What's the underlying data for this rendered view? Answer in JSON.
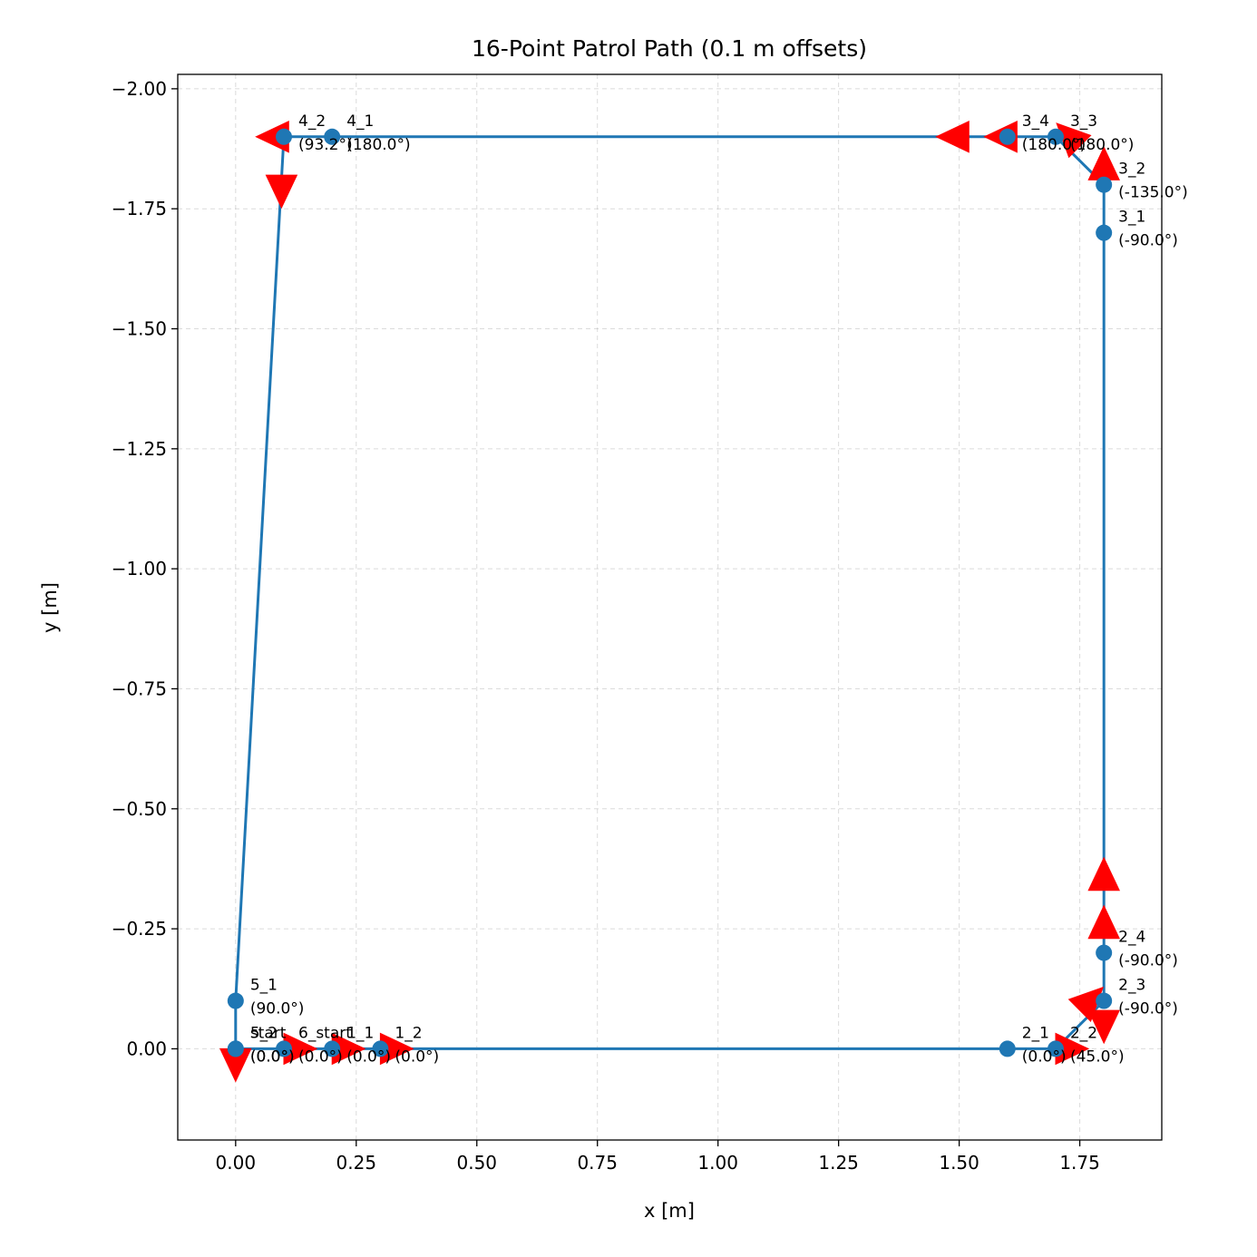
{
  "chart_data": {
    "type": "line",
    "title": "16-Point Patrol Path (0.1 m offsets)",
    "xlabel": "x [m]",
    "ylabel": "y [m]",
    "xlim": [
      -0.12,
      1.92
    ],
    "ylim": [
      0.19,
      -2.03
    ],
    "y_inverted": true,
    "grid": true,
    "x_ticks": [
      "0.00",
      "0.25",
      "0.50",
      "0.75",
      "1.00",
      "1.25",
      "1.50",
      "1.75"
    ],
    "x_tick_values": [
      0,
      0.25,
      0.5,
      0.75,
      1.0,
      1.25,
      1.5,
      1.75
    ],
    "y_ticks": [
      "0.00",
      "−0.25",
      "−0.50",
      "−0.75",
      "−1.00",
      "−1.25",
      "−1.50",
      "−1.75",
      "−2.00"
    ],
    "y_tick_values": [
      0,
      -0.25,
      -0.5,
      -0.75,
      -1.0,
      -1.25,
      -1.5,
      -1.75,
      -2.0
    ],
    "path_color": "#1f77b4",
    "arrow_color": "#ff0000",
    "points": [
      {
        "name": "start",
        "x": 0.0,
        "y": 0.0,
        "heading": "(0.0°)"
      },
      {
        "name": "1_1",
        "x": 0.2,
        "y": 0.0,
        "heading": "(0.0°)"
      },
      {
        "name": "1_2",
        "x": 0.3,
        "y": 0.0,
        "heading": "(0.0°)"
      },
      {
        "name": "2_1",
        "x": 1.6,
        "y": 0.0,
        "heading": "(0.0°)"
      },
      {
        "name": "2_2",
        "x": 1.7,
        "y": 0.0,
        "heading": "(45.0°)"
      },
      {
        "name": "2_3",
        "x": 1.8,
        "y": -0.1,
        "heading": "(-90.0°)"
      },
      {
        "name": "2_4",
        "x": 1.8,
        "y": -0.2,
        "heading": "(-90.0°)"
      },
      {
        "name": "3_1",
        "x": 1.8,
        "y": -1.7,
        "heading": "(-90.0°)"
      },
      {
        "name": "3_2",
        "x": 1.8,
        "y": -1.8,
        "heading": "(-135.0°)"
      },
      {
        "name": "3_3",
        "x": 1.7,
        "y": -1.9,
        "heading": "(180.0°)"
      },
      {
        "name": "3_4",
        "x": 1.6,
        "y": -1.9,
        "heading": "(180.0°)"
      },
      {
        "name": "4_1",
        "x": 0.2,
        "y": -1.9,
        "heading": "(180.0°)"
      },
      {
        "name": "4_2",
        "x": 0.1,
        "y": -1.9,
        "heading": "(93.2°)"
      },
      {
        "name": "5_1",
        "x": 0.0,
        "y": -0.1,
        "heading": "(90.0°)"
      },
      {
        "name": "5_2",
        "x": 0.0,
        "y": 0.0,
        "heading": "(0.0°)"
      },
      {
        "name": "6_start",
        "x": 0.1,
        "y": 0.0,
        "heading": "(0.0°)"
      }
    ],
    "path_order": [
      "start",
      "6_start",
      "1_1",
      "1_2",
      "2_1",
      "2_2",
      "2_3",
      "2_4",
      "3_1",
      "3_2",
      "3_3",
      "3_4",
      "4_1",
      "4_2",
      "5_1",
      "5_2"
    ],
    "arrows": [
      {
        "x": 0.0,
        "y": 0.0,
        "dx": 0.0,
        "dy": 0.1
      },
      {
        "x": 0.1,
        "y": 0.0,
        "dx": 0.1,
        "dy": 0.0
      },
      {
        "x": 0.2,
        "y": 0.0,
        "dx": 0.1,
        "dy": 0.0
      },
      {
        "x": 0.3,
        "y": 0.0,
        "dx": 0.1,
        "dy": 0.0
      },
      {
        "x": 1.7,
        "y": 0.0,
        "dx": 0.1,
        "dy": 0.0
      },
      {
        "x": 1.75,
        "y": -0.08,
        "dx": 0.05,
        "dy": -0.05
      },
      {
        "x": 1.8,
        "y": -0.08,
        "dx": 0.0,
        "dy": 0.1
      },
      {
        "x": 1.8,
        "y": -0.23,
        "dx": 0.0,
        "dy": -0.1
      },
      {
        "x": 1.8,
        "y": -0.33,
        "dx": 0.0,
        "dy": -0.1
      },
      {
        "x": 1.8,
        "y": -1.81,
        "dx": 0.0,
        "dy": -0.1
      },
      {
        "x": 1.75,
        "y": -1.88,
        "dx": -0.05,
        "dy": -0.05
      },
      {
        "x": 1.62,
        "y": -1.9,
        "dx": -0.1,
        "dy": 0.0
      },
      {
        "x": 1.52,
        "y": -1.9,
        "dx": -0.1,
        "dy": 0.0
      },
      {
        "x": 0.11,
        "y": -1.9,
        "dx": -0.1,
        "dy": 0.0
      },
      {
        "x": 0.095,
        "y": -1.82,
        "dx": 0.0,
        "dy": 0.1
      }
    ]
  }
}
